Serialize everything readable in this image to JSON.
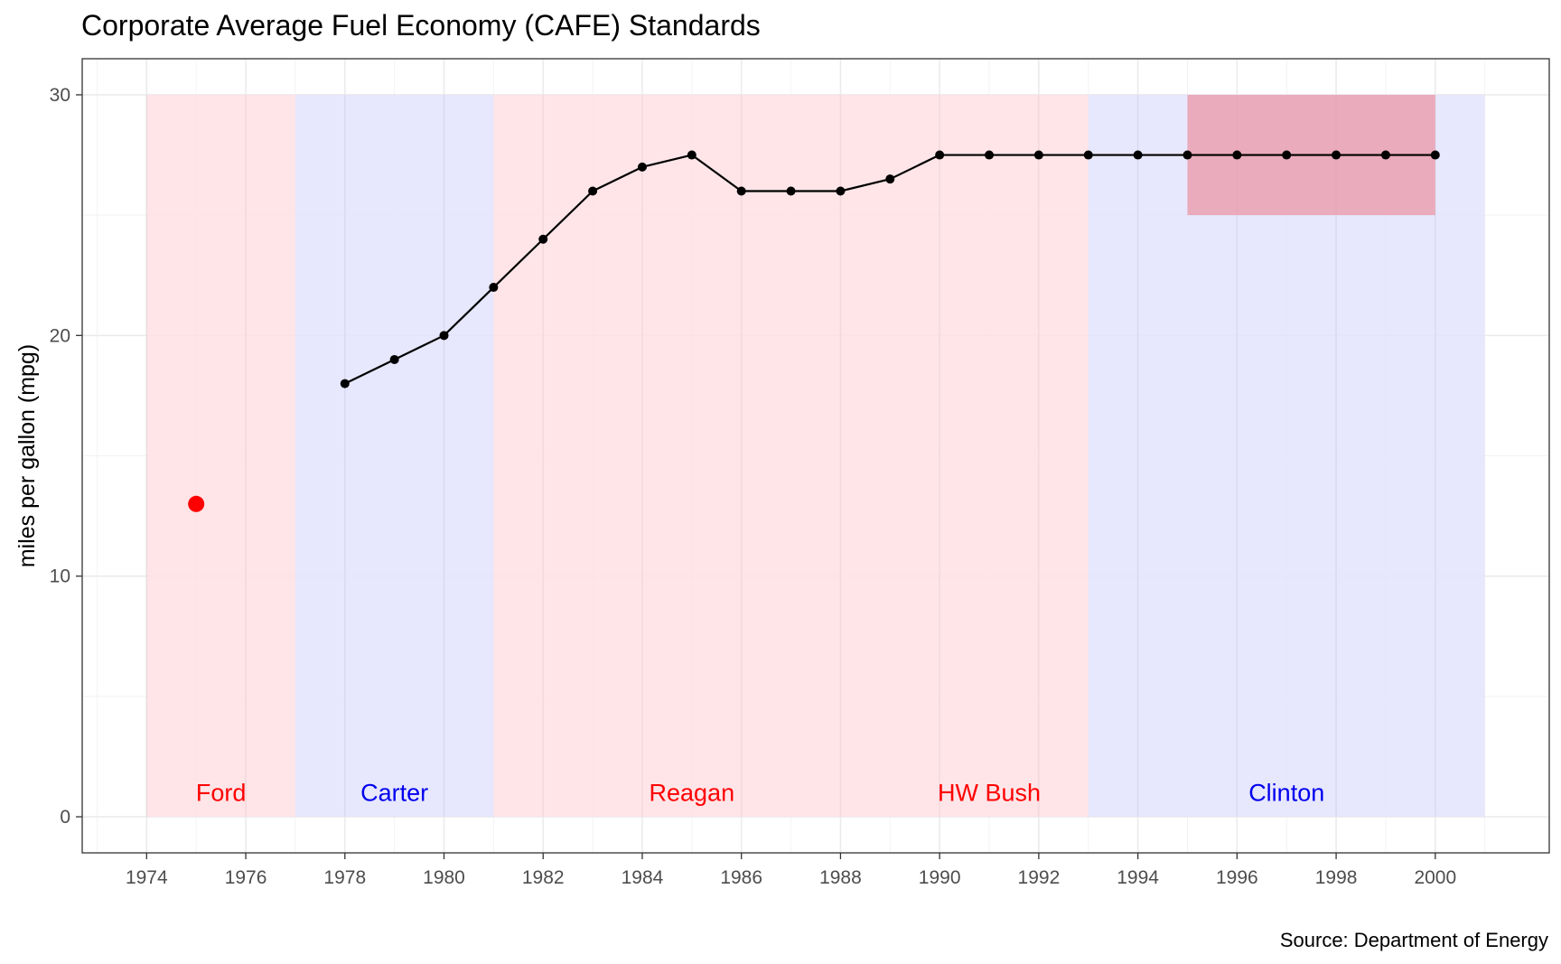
{
  "chart_data": {
    "type": "line",
    "title": "Corporate Average Fuel Economy (CAFE) Standards",
    "caption": "Source: Department of Energy",
    "xlabel": "",
    "ylabel": "miles per gallon (mpg)",
    "xlim": [
      1972.7,
      2002.3
    ],
    "ylim": [
      -1.5,
      31.5
    ],
    "x_ticks": [
      1974,
      1976,
      1978,
      1980,
      1982,
      1984,
      1986,
      1988,
      1990,
      1992,
      1994,
      1996,
      1998,
      2000
    ],
    "y_ticks": [
      0,
      10,
      20,
      30
    ],
    "grid": true,
    "legend": "none",
    "colors": {
      "republican_fill": "#ffe1e4",
      "democrat_fill": "#e3e3fd",
      "republican_text": "#ff0000",
      "democrat_text": "#0000ee",
      "highlight_fill": "#eaa0b0",
      "line": "#000000",
      "highlight_point": "#ff0000"
    },
    "eras": [
      {
        "label": "Ford",
        "start": 1974,
        "end": 1977,
        "party": "republican",
        "label_x": 1975.5
      },
      {
        "label": "Carter",
        "start": 1977,
        "end": 1981,
        "party": "democrat",
        "label_x": 1979
      },
      {
        "label": "Reagan",
        "start": 1981,
        "end": 1989,
        "party": "republican",
        "label_x": 1985
      },
      {
        "label": "HW Bush",
        "start": 1989,
        "end": 1993,
        "party": "republican",
        "label_x": 1991
      },
      {
        "label": "Clinton",
        "start": 1993,
        "end": 2001,
        "party": "democrat",
        "label_x": 1997
      }
    ],
    "era_ymax": 30,
    "era_label_y": 1,
    "highlight_rect": {
      "x": [
        1995,
        2000
      ],
      "y": [
        25,
        30
      ]
    },
    "highlight_point": {
      "x": 1975,
      "y": 13
    },
    "series": [
      {
        "x": [
          1978,
          1979,
          1980,
          1981,
          1982,
          1983,
          1984,
          1985,
          1986,
          1987,
          1988,
          1989,
          1990,
          1991,
          1992,
          1993,
          1994,
          1995,
          1996,
          1997,
          1998,
          1999,
          2000
        ],
        "values": [
          18,
          19,
          20,
          22,
          24,
          26,
          27,
          27.5,
          26,
          26,
          26,
          26.5,
          27.5,
          27.5,
          27.5,
          27.5,
          27.5,
          27.5,
          27.5,
          27.5,
          27.5,
          27.5,
          27.5
        ]
      }
    ]
  }
}
